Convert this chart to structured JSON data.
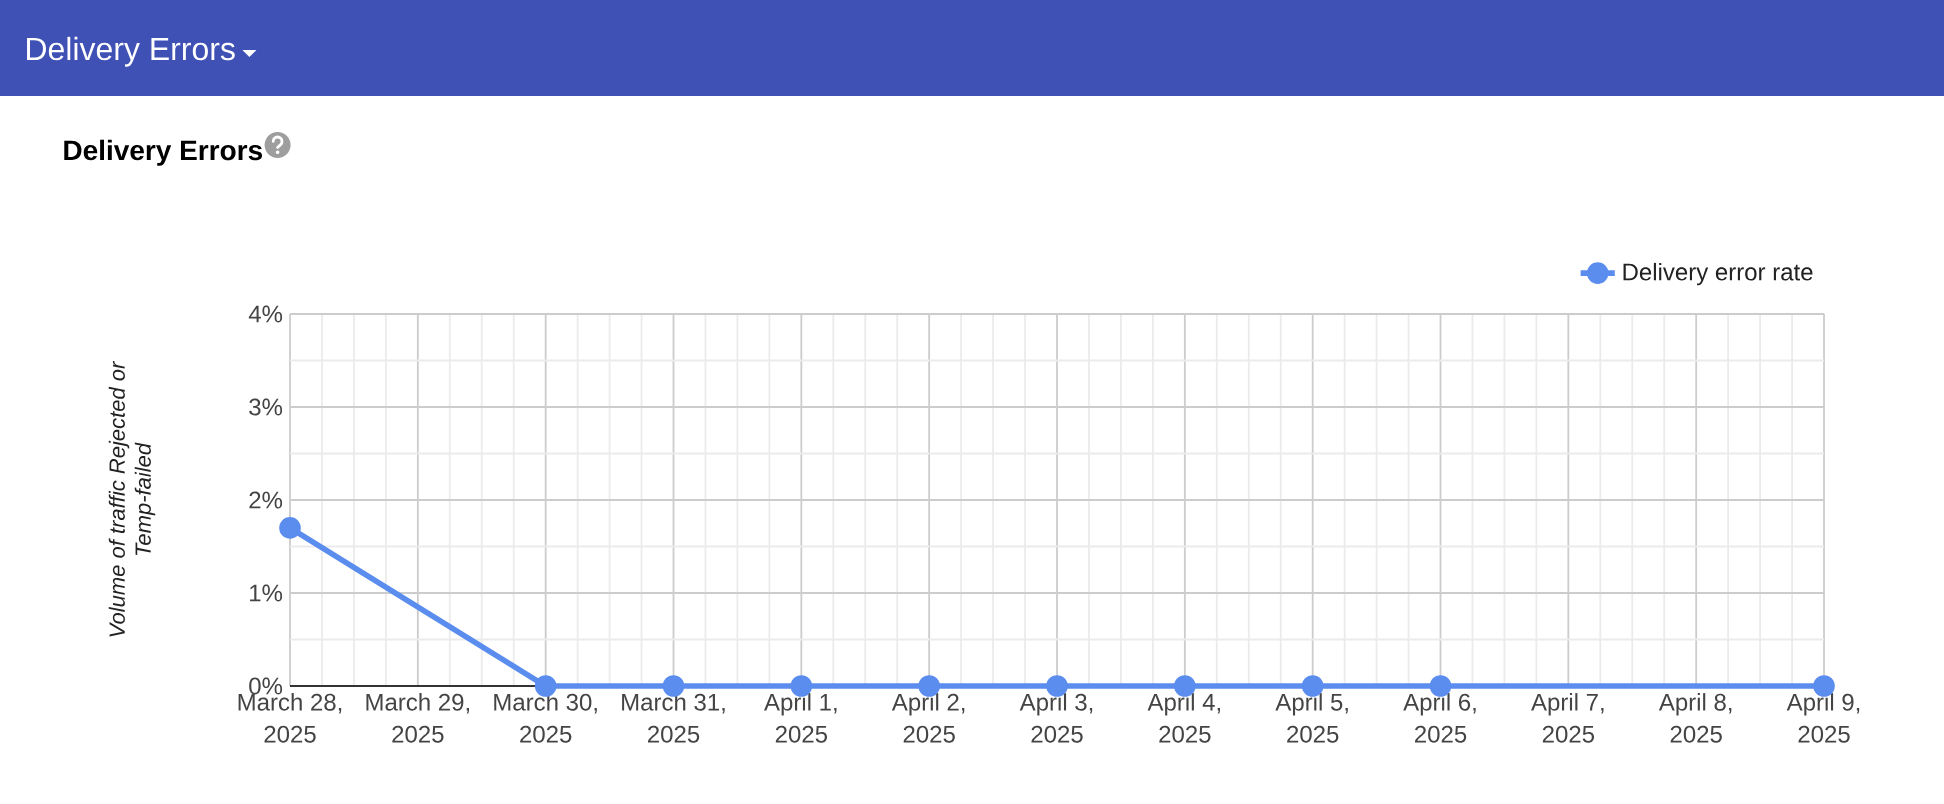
{
  "chart_data": {
    "type": "line",
    "title": "Delivery Errors",
    "ylabel": "Volume of traffic Rejected or Temp-failed",
    "annotations": [
      "Delivery Errors"
    ],
    "xlim": [
      "2025-03-28",
      "2025-04-09"
    ],
    "xticks": [
      {
        "value": "2025-03-28",
        "label": "March 28, 2025"
      },
      {
        "value": "2025-03-29",
        "label": "March 29, 2025"
      },
      {
        "value": "2025-03-30",
        "label": "March 30, 2025"
      },
      {
        "value": "2025-03-31",
        "label": "March 31, 2025"
      },
      {
        "value": "2025-04-01",
        "label": "April 1, 2025"
      },
      {
        "value": "2025-04-02",
        "label": "April 2, 2025"
      },
      {
        "value": "2025-04-03",
        "label": "April 3, 2025"
      },
      {
        "value": "2025-04-04",
        "label": "April 4, 2025"
      },
      {
        "value": "2025-04-05",
        "label": "April 5, 2025"
      },
      {
        "value": "2025-04-06",
        "label": "April 6, 2025"
      },
      {
        "value": "2025-04-07",
        "label": "April 7, 2025"
      },
      {
        "value": "2025-04-08",
        "label": "April 8, 2025"
      },
      {
        "value": "2025-04-09",
        "label": "April 9, 2025"
      }
    ],
    "ylim": [
      0,
      4
    ],
    "yticks": [
      {
        "value": 0,
        "label": "0%"
      },
      {
        "value": 1,
        "label": "1%"
      },
      {
        "value": 2,
        "label": "2%"
      },
      {
        "value": 3,
        "label": "3%"
      },
      {
        "value": 4,
        "label": "4%"
      }
    ],
    "series": [
      {
        "name": "Delivery error rate",
        "color": "#5b8def",
        "x": [
          "2025-03-28",
          "2025-03-30",
          "2025-03-31",
          "2025-04-01",
          "2025-04-02",
          "2025-04-03",
          "2025-04-04",
          "2025-04-05",
          "2025-04-06",
          "2025-04-09"
        ],
        "values": [
          1.7,
          0,
          0,
          0,
          0,
          0,
          0,
          0,
          0,
          0
        ]
      }
    ],
    "grid": true,
    "legend": "top right",
    "marker": "circle",
    "line_style": "solid"
  }
}
